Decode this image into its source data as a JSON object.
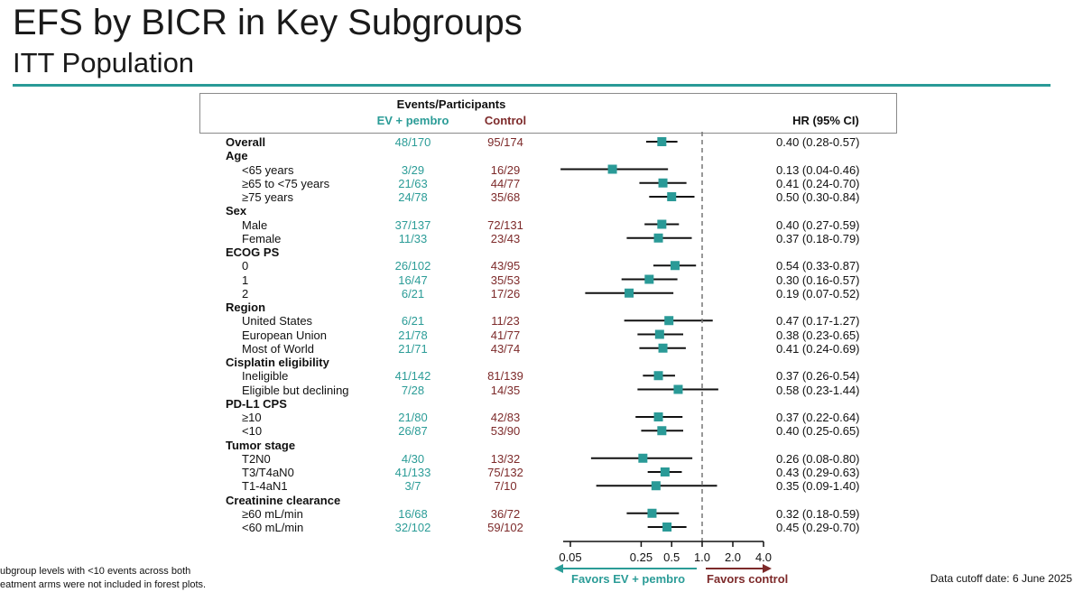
{
  "title": "EFS by BICR in Key Subgroups",
  "subtitle": "ITT Population",
  "header": {
    "events_label": "Events/Participants",
    "ev_label": "EV + pembro",
    "control_label": "Control",
    "hr_label": "HR (95% CI)"
  },
  "colors": {
    "ev": "#2b9c97",
    "control": "#7d2a2a",
    "marker": "#2a9a97",
    "rule": "#2a9a97"
  },
  "axis": {
    "ticks": [
      "0.05",
      "0.25",
      "0.5",
      "1.0",
      "2.0",
      "4.0"
    ],
    "favors_ev": "Favors EV + pembro",
    "favors_control": "Favors control"
  },
  "footnote": [
    "ubgroup levels with <10 events across both",
    "eatment arms were not included in forest plots."
  ],
  "cutoff": "Data cutoff date: 6 June 2025",
  "chart_data": {
    "type": "forest",
    "title": "EFS by BICR in Key Subgroups",
    "subtitle": "ITT Population",
    "scale": "log",
    "xlim": [
      0.05,
      4.0
    ],
    "reference_line": 1.0,
    "rows": [
      {
        "label": "Overall",
        "header": true,
        "ev": "48/170",
        "ctl": "95/174",
        "hr_text": "0.40 (0.28-0.57)",
        "hr": 0.4,
        "lo": 0.28,
        "hi": 0.57
      },
      {
        "label": "Age",
        "header": true
      },
      {
        "label": "<65 years",
        "ev": "3/29",
        "ctl": "16/29",
        "hr_text": "0.13 (0.04-0.46)",
        "hr": 0.13,
        "lo": 0.04,
        "hi": 0.46
      },
      {
        "label": "≥65 to <75 years",
        "ev": "21/63",
        "ctl": "44/77",
        "hr_text": "0.41 (0.24-0.70)",
        "hr": 0.41,
        "lo": 0.24,
        "hi": 0.7
      },
      {
        "label": "≥75 years",
        "ev": "24/78",
        "ctl": "35/68",
        "hr_text": "0.50 (0.30-0.84)",
        "hr": 0.5,
        "lo": 0.3,
        "hi": 0.84
      },
      {
        "label": "Sex",
        "header": true
      },
      {
        "label": "Male",
        "ev": "37/137",
        "ctl": "72/131",
        "hr_text": "0.40 (0.27-0.59)",
        "hr": 0.4,
        "lo": 0.27,
        "hi": 0.59
      },
      {
        "label": "Female",
        "ev": "11/33",
        "ctl": "23/43",
        "hr_text": "0.37 (0.18-0.79)",
        "hr": 0.37,
        "lo": 0.18,
        "hi": 0.79
      },
      {
        "label": "ECOG PS",
        "header": true
      },
      {
        "label": "0",
        "ev": "26/102",
        "ctl": "43/95",
        "hr_text": "0.54 (0.33-0.87)",
        "hr": 0.54,
        "lo": 0.33,
        "hi": 0.87
      },
      {
        "label": "1",
        "ev": "16/47",
        "ctl": "35/53",
        "hr_text": "0.30 (0.16-0.57)",
        "hr": 0.3,
        "lo": 0.16,
        "hi": 0.57
      },
      {
        "label": "2",
        "ev": "6/21",
        "ctl": "17/26",
        "hr_text": "0.19 (0.07-0.52)",
        "hr": 0.19,
        "lo": 0.07,
        "hi": 0.52
      },
      {
        "label": "Region",
        "header": true
      },
      {
        "label": "United States",
        "ev": "6/21",
        "ctl": "11/23",
        "hr_text": "0.47 (0.17-1.27)",
        "hr": 0.47,
        "lo": 0.17,
        "hi": 1.27
      },
      {
        "label": "European Union",
        "ev": "21/78",
        "ctl": "41/77",
        "hr_text": "0.38 (0.23-0.65)",
        "hr": 0.38,
        "lo": 0.23,
        "hi": 0.65
      },
      {
        "label": "Most of World",
        "ev": "21/71",
        "ctl": "43/74",
        "hr_text": "0.41 (0.24-0.69)",
        "hr": 0.41,
        "lo": 0.24,
        "hi": 0.69
      },
      {
        "label": "Cisplatin eligibility",
        "header": true
      },
      {
        "label": "Ineligible",
        "ev": "41/142",
        "ctl": "81/139",
        "hr_text": "0.37 (0.26-0.54)",
        "hr": 0.37,
        "lo": 0.26,
        "hi": 0.54
      },
      {
        "label": "Eligible but declining",
        "ev": "7/28",
        "ctl": "14/35",
        "hr_text": "0.58 (0.23-1.44)",
        "hr": 0.58,
        "lo": 0.23,
        "hi": 1.44
      },
      {
        "label": "PD-L1 CPS",
        "header": true
      },
      {
        "label": "≥10",
        "ev": "21/80",
        "ctl": "42/83",
        "hr_text": "0.37 (0.22-0.64)",
        "hr": 0.37,
        "lo": 0.22,
        "hi": 0.64
      },
      {
        "label": "<10",
        "ev": "26/87",
        "ctl": "53/90",
        "hr_text": "0.40 (0.25-0.65)",
        "hr": 0.4,
        "lo": 0.25,
        "hi": 0.65
      },
      {
        "label": "Tumor stage",
        "header": true
      },
      {
        "label": "T2N0",
        "ev": "4/30",
        "ctl": "13/32",
        "hr_text": "0.26 (0.08-0.80)",
        "hr": 0.26,
        "lo": 0.08,
        "hi": 0.8
      },
      {
        "label": "T3/T4aN0",
        "ev": "41/133",
        "ctl": "75/132",
        "hr_text": "0.43 (0.29-0.63)",
        "hr": 0.43,
        "lo": 0.29,
        "hi": 0.63
      },
      {
        "label": "T1-4aN1",
        "ev": "3/7",
        "ctl": "7/10",
        "hr_text": "0.35 (0.09-1.40)",
        "hr": 0.35,
        "lo": 0.09,
        "hi": 1.4
      },
      {
        "label": "Creatinine clearance",
        "header": true
      },
      {
        "label": "≥60 mL/min",
        "ev": "16/68",
        "ctl": "36/72",
        "hr_text": "0.32 (0.18-0.59)",
        "hr": 0.32,
        "lo": 0.18,
        "hi": 0.59
      },
      {
        "label": "<60 mL/min",
        "ev": "32/102",
        "ctl": "59/102",
        "hr_text": "0.45 (0.29-0.70)",
        "hr": 0.45,
        "lo": 0.29,
        "hi": 0.7
      }
    ]
  }
}
